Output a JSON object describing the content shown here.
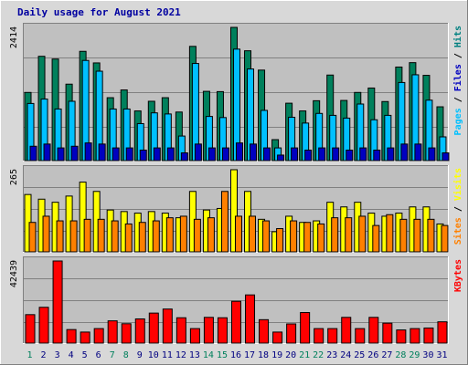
{
  "chart_data": {
    "type": "bar",
    "title": "Daily usage for August 2021",
    "categories": [
      "1",
      "2",
      "3",
      "4",
      "5",
      "6",
      "7",
      "8",
      "9",
      "10",
      "11",
      "12",
      "13",
      "14",
      "15",
      "16",
      "17",
      "18",
      "19",
      "20",
      "21",
      "22",
      "23",
      "24",
      "25",
      "26",
      "27",
      "28",
      "29",
      "30",
      "31"
    ],
    "weekend_days": [
      "1",
      "7",
      "8",
      "14",
      "15",
      "21",
      "22",
      "28",
      "29"
    ],
    "panels": [
      {
        "id": "hits",
        "ymax_label": "2414",
        "ymax": 2414,
        "legend": [
          {
            "text": "Pages",
            "color": "#00c0ff"
          },
          {
            "text": " / ",
            "color": "#000000"
          },
          {
            "text": "Files",
            "color": "#0000c0"
          },
          {
            "text": " / ",
            "color": "#000000"
          },
          {
            "text": "Hits",
            "color": "#008080"
          }
        ],
        "series": [
          {
            "name": "Hits",
            "color": "#00805c",
            "values": [
              1235,
              1890,
              1840,
              1385,
              1980,
              1770,
              1140,
              1280,
              900,
              1075,
              1140,
              880,
              2070,
              1255,
              1250,
              2414,
              1990,
              1640,
              380,
              1040,
              900,
              1085,
              1550,
              1090,
              1235,
              1315,
              1070,
              1695,
              1775,
              1545,
              975
            ]
          },
          {
            "name": "Files",
            "color": "#00c0ff",
            "values": [
              1035,
              1115,
              935,
              1075,
              1815,
              1620,
              935,
              935,
              670,
              865,
              845,
              445,
              1760,
              800,
              780,
              2020,
              1660,
              910,
              230,
              785,
              680,
              855,
              820,
              770,
              1025,
              740,
              820,
              1415,
              1555,
              1095,
              430
            ]
          },
          {
            "name": "Pages",
            "color": "#0000c0",
            "values": [
              260,
              300,
              230,
              260,
              320,
              300,
              230,
              230,
              190,
              230,
              230,
              140,
              300,
              230,
              230,
              320,
              300,
              230,
              100,
              230,
              190,
              230,
              230,
              190,
              230,
              190,
              230,
              300,
              300,
              230,
              140
            ]
          }
        ]
      },
      {
        "id": "visits",
        "ymax_label": "265",
        "ymax": 265,
        "legend": [
          {
            "text": "Sites",
            "color": "#ff8000"
          },
          {
            "text": " / ",
            "color": "#000000"
          },
          {
            "text": "Visits",
            "color": "#ffff00"
          }
        ],
        "series": [
          {
            "name": "Visits",
            "color": "#ffff00",
            "values": [
              185,
              170,
              160,
              180,
              225,
              195,
              135,
              130,
              125,
              130,
              125,
              110,
              195,
              135,
              140,
              265,
              195,
              105,
              65,
              115,
              95,
              100,
              160,
              145,
              160,
              125,
              115,
              125,
              145,
              145,
              90
            ]
          },
          {
            "name": "Sites",
            "color": "#ff8000",
            "values": [
              95,
              115,
              100,
              100,
              105,
              105,
              100,
              90,
              95,
              100,
              110,
              115,
              105,
              110,
              195,
              115,
              115,
              100,
              75,
              100,
              95,
              90,
              110,
              110,
              115,
              85,
              120,
              105,
              105,
              105,
              85
            ]
          }
        ]
      },
      {
        "id": "kbytes",
        "ymax_label": "42439",
        "ymax": 42439,
        "legend": [
          {
            "text": "KBytes",
            "color": "#ff0000"
          }
        ],
        "series": [
          {
            "name": "KBytes",
            "color": "#ff0000",
            "values": [
              14700,
              18500,
              42439,
              7000,
              5700,
              7500,
              11500,
              10000,
              12500,
              15500,
              17600,
              13100,
              7500,
              13300,
              13100,
              21600,
              24900,
              12100,
              5700,
              9900,
              15800,
              7500,
              7500,
              13300,
              7500,
              13300,
              10300,
              6800,
              7500,
              7800,
              11000
            ]
          }
        ]
      }
    ]
  }
}
